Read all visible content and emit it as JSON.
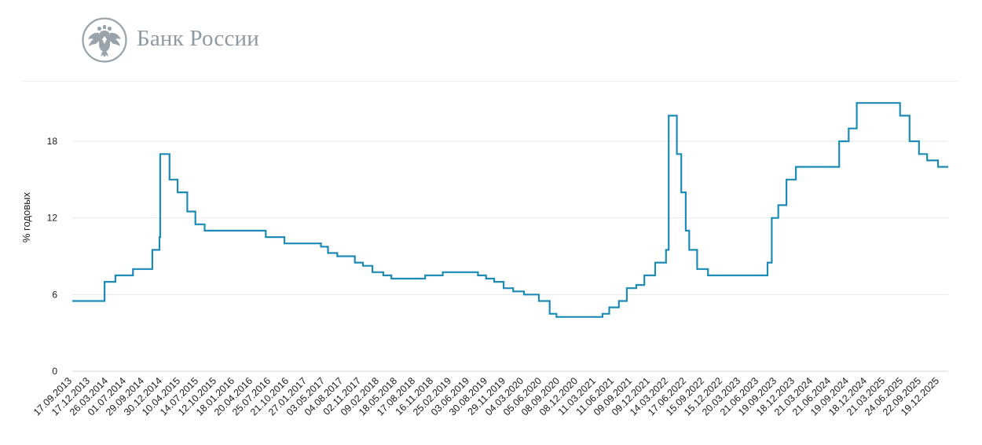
{
  "header": {
    "bank_name": "Банк России",
    "logo_icon": "double-headed-eagle-emblem",
    "brand_color": "#8e9aa3"
  },
  "chart_data": {
    "type": "line",
    "title": "",
    "xlabel": "",
    "ylabel": "% годовых",
    "ylim": [
      0,
      18
    ],
    "yticks": [
      0,
      6,
      12,
      18
    ],
    "grid": true,
    "line_color": "#1d8bb5",
    "xlim": [
      "2013-09-17",
      "2026-02-13"
    ],
    "x_tick_labels": [
      "17.09.2013",
      "17.12.2013",
      "26.03.2014",
      "01.07.2014",
      "29.09.2014",
      "30.12.2014",
      "10.04.2015",
      "14.07.2015",
      "12.10.2015",
      "18.01.2016",
      "20.04.2016",
      "25.07.2016",
      "21.10.2016",
      "27.01.2017",
      "03.05.2017",
      "04.08.2017",
      "02.11.2017",
      "09.02.2018",
      "18.05.2018",
      "17.08.2018",
      "16.11.2018",
      "25.02.2019",
      "03.06.2019",
      "30.08.2019",
      "29.11.2019",
      "04.03.2020",
      "05.06.2020",
      "08.09.2020",
      "08.12.2020",
      "11.03.2021",
      "11.06.2021",
      "09.09.2021",
      "09.12.2021",
      "14.03.2022",
      "17.06.2022",
      "15.09.2022",
      "15.12.2022",
      "20.03.2023",
      "21.06.2023",
      "19.09.2023",
      "18.12.2023",
      "21.03.2024",
      "21.06.2024",
      "19.09.2024",
      "18.12.2024",
      "21.03.2025",
      "24.06.2025",
      "22.09.2025",
      "19.12.2025"
    ],
    "series": [
      {
        "step": "post",
        "x": [
          "2013-09-17",
          "2014-03-03",
          "2014-04-28",
          "2014-07-28",
          "2014-11-05",
          "2014-12-12",
          "2014-12-16",
          "2015-02-02",
          "2015-03-16",
          "2015-05-05",
          "2015-06-16",
          "2015-08-03",
          "2016-06-14",
          "2016-09-19",
          "2017-03-27",
          "2017-05-02",
          "2017-06-19",
          "2017-09-18",
          "2017-10-30",
          "2017-12-18",
          "2018-02-12",
          "2018-03-26",
          "2018-09-17",
          "2018-12-17",
          "2019-06-17",
          "2019-07-29",
          "2019-09-09",
          "2019-10-28",
          "2019-12-16",
          "2020-02-10",
          "2020-04-27",
          "2020-06-22",
          "2020-07-27",
          "2021-03-22",
          "2021-04-26",
          "2021-06-15",
          "2021-07-26",
          "2021-09-13",
          "2021-10-25",
          "2021-12-20",
          "2022-02-14",
          "2022-02-28",
          "2022-04-11",
          "2022-05-04",
          "2022-05-27",
          "2022-06-14",
          "2022-07-25",
          "2022-09-19",
          "2023-07-24",
          "2023-08-15",
          "2023-09-18",
          "2023-10-30",
          "2023-12-18",
          "2024-07-29",
          "2024-09-16",
          "2024-10-28",
          "2025-06-09",
          "2025-07-28",
          "2025-09-15",
          "2025-10-27",
          "2025-12-22",
          "2026-02-13"
        ],
        "y": [
          5.5,
          7.0,
          7.5,
          8.0,
          9.5,
          10.5,
          17.0,
          15.0,
          14.0,
          12.5,
          11.5,
          11.0,
          10.5,
          10.0,
          9.75,
          9.25,
          9.0,
          8.5,
          8.25,
          7.75,
          7.5,
          7.25,
          7.5,
          7.75,
          7.5,
          7.25,
          7.0,
          6.5,
          6.25,
          6.0,
          5.5,
          4.5,
          4.25,
          4.5,
          5.0,
          5.5,
          6.5,
          6.75,
          7.5,
          8.5,
          9.5,
          20.0,
          17.0,
          14.0,
          11.0,
          9.5,
          8.0,
          7.5,
          8.5,
          12.0,
          13.0,
          15.0,
          16.0,
          18.0,
          19.0,
          21.0,
          20.0,
          18.0,
          17.0,
          16.5,
          16.0,
          16.0
        ]
      }
    ]
  }
}
